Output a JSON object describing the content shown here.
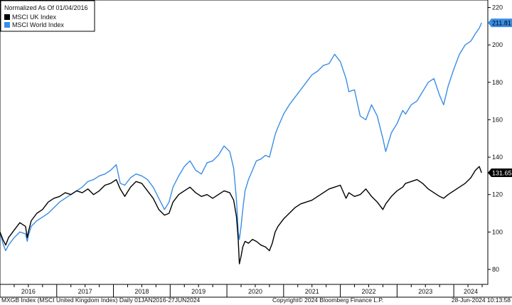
{
  "chart_data": {
    "type": "line",
    "legend": {
      "title": "Normalized As Of 01/04/2016",
      "placement": "top-left",
      "entries": [
        {
          "name": "MSCI UK Index",
          "color": "#000000"
        },
        {
          "name": "MSCI World Index",
          "color": "#3a8ee6"
        }
      ]
    },
    "yaxis": {
      "side": "right",
      "ylim": [
        72,
        224
      ],
      "ticks": [
        80,
        100,
        120,
        140,
        160,
        180,
        200,
        220
      ],
      "grid": false
    },
    "xaxis": {
      "range": [
        2016.0,
        2024.6
      ],
      "year_labels": [
        "2016",
        "2017",
        "2018",
        "2019",
        "2020",
        "2021",
        "2022",
        "2023",
        "2024"
      ]
    },
    "series": [
      {
        "name": "MSCI UK Index",
        "color": "#000000",
        "last_value_label": "131.65",
        "x": [
          2016.0,
          2016.05,
          2016.1,
          2016.15,
          2016.25,
          2016.35,
          2016.45,
          2016.48,
          2016.5,
          2016.55,
          2016.65,
          2016.75,
          2016.85,
          2016.95,
          2017.05,
          2017.15,
          2017.25,
          2017.35,
          2017.45,
          2017.55,
          2017.65,
          2017.75,
          2017.85,
          2017.95,
          2018.05,
          2018.12,
          2018.2,
          2018.3,
          2018.4,
          2018.5,
          2018.6,
          2018.7,
          2018.8,
          2018.9,
          2018.98,
          2019.05,
          2019.15,
          2019.25,
          2019.35,
          2019.45,
          2019.55,
          2019.65,
          2019.75,
          2019.85,
          2019.95,
          2020.05,
          2020.12,
          2020.17,
          2020.2,
          2020.22,
          2020.25,
          2020.28,
          2020.32,
          2020.38,
          2020.45,
          2020.52,
          2020.6,
          2020.68,
          2020.75,
          2020.8,
          2020.85,
          2020.9,
          2021.0,
          2021.1,
          2021.2,
          2021.3,
          2021.4,
          2021.5,
          2021.6,
          2021.7,
          2021.8,
          2021.9,
          2022.0,
          2022.1,
          2022.15,
          2022.25,
          2022.35,
          2022.45,
          2022.55,
          2022.65,
          2022.75,
          2022.8,
          2022.9,
          2023.0,
          2023.1,
          2023.15,
          2023.25,
          2023.35,
          2023.45,
          2023.55,
          2023.65,
          2023.75,
          2023.82,
          2023.9,
          2024.0,
          2024.1,
          2024.2,
          2024.3,
          2024.38,
          2024.45,
          2024.49
        ],
        "y": [
          100,
          96,
          93,
          97,
          101,
          105,
          103,
          97,
          100,
          106,
          110,
          112,
          116,
          118,
          119,
          121,
          120,
          122,
          121,
          123,
          120,
          122,
          125,
          126,
          128,
          123,
          119,
          124,
          127,
          126,
          122,
          118,
          112,
          109,
          110,
          116,
          120,
          122,
          124,
          121,
          119,
          120,
          118,
          120,
          122,
          121,
          117,
          108,
          96,
          83,
          87,
          92,
          95,
          94,
          96,
          95,
          93,
          92,
          90,
          94,
          100,
          103,
          107,
          110,
          113,
          115,
          116,
          117,
          119,
          121,
          123,
          124,
          125,
          118,
          121,
          119,
          120,
          123,
          119,
          116,
          112,
          115,
          119,
          122,
          124,
          126,
          127,
          128,
          126,
          123,
          121,
          119,
          118,
          120,
          122,
          124,
          126,
          129,
          133,
          135,
          131.65
        ]
      },
      {
        "name": "MSCI World Index",
        "color": "#3a8ee6",
        "last_value_label": "211.81",
        "x": [
          2016.0,
          2016.05,
          2016.1,
          2016.15,
          2016.25,
          2016.35,
          2016.45,
          2016.48,
          2016.5,
          2016.55,
          2016.65,
          2016.75,
          2016.85,
          2016.95,
          2017.05,
          2017.15,
          2017.25,
          2017.35,
          2017.45,
          2017.55,
          2017.65,
          2017.75,
          2017.85,
          2017.95,
          2018.05,
          2018.12,
          2018.2,
          2018.3,
          2018.4,
          2018.5,
          2018.6,
          2018.7,
          2018.8,
          2018.9,
          2018.98,
          2019.05,
          2019.15,
          2019.25,
          2019.35,
          2019.45,
          2019.55,
          2019.65,
          2019.75,
          2019.85,
          2019.95,
          2020.05,
          2020.12,
          2020.17,
          2020.2,
          2020.22,
          2020.25,
          2020.28,
          2020.32,
          2020.38,
          2020.45,
          2020.52,
          2020.6,
          2020.68,
          2020.75,
          2020.8,
          2020.85,
          2020.9,
          2021.0,
          2021.1,
          2021.2,
          2021.3,
          2021.4,
          2021.5,
          2021.6,
          2021.7,
          2021.8,
          2021.9,
          2022.0,
          2022.1,
          2022.15,
          2022.25,
          2022.35,
          2022.45,
          2022.55,
          2022.65,
          2022.75,
          2022.8,
          2022.9,
          2023.0,
          2023.1,
          2023.15,
          2023.25,
          2023.35,
          2023.45,
          2023.55,
          2023.65,
          2023.75,
          2023.82,
          2023.9,
          2024.0,
          2024.1,
          2024.2,
          2024.3,
          2024.38,
          2024.45,
          2024.49
        ],
        "y": [
          100,
          94,
          90,
          93,
          97,
          100,
          99,
          95,
          98,
          103,
          106,
          108,
          110,
          113,
          116,
          118,
          120,
          122,
          124,
          127,
          128,
          130,
          131,
          133,
          136,
          126,
          125,
          129,
          131,
          130,
          128,
          124,
          118,
          112,
          116,
          124,
          130,
          135,
          138,
          133,
          131,
          137,
          138,
          141,
          146,
          143,
          134,
          117,
          100,
          96,
          103,
          112,
          122,
          128,
          133,
          138,
          139,
          141,
          140,
          146,
          152,
          156,
          163,
          168,
          172,
          176,
          180,
          184,
          186,
          189,
          190,
          195,
          191,
          182,
          175,
          176,
          162,
          160,
          168,
          162,
          150,
          143,
          153,
          158,
          165,
          163,
          168,
          170,
          175,
          180,
          182,
          173,
          168,
          178,
          187,
          195,
          200,
          202,
          206,
          209,
          211.81
        ]
      }
    ]
  },
  "footer": {
    "left": "MXGB Index (MSCI United Kingdom Index)  Daily 01JAN2016-27JUN2024",
    "center": "Copyright© 2024 Bloomberg Finance L.P.",
    "right": "28-Jun-2024 10:13:58"
  }
}
